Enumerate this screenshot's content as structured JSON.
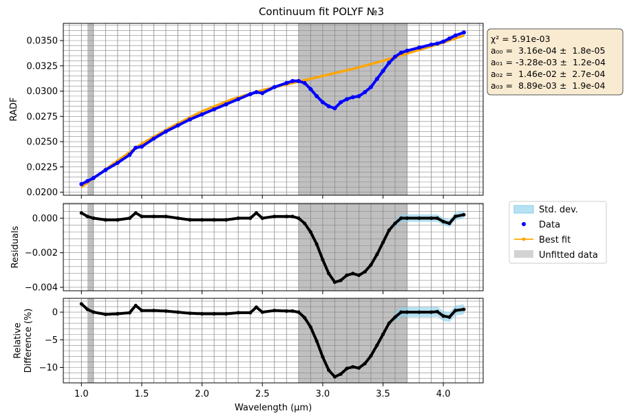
{
  "title": "Continuum fit POLYF №3",
  "colors": {
    "data": "#0000ff",
    "fit": "#ffa500",
    "std": "#87ceeb",
    "unfitted": "#c0c0c0",
    "residual_pts": "#000000",
    "stats_box": "#f5deb3"
  },
  "xlabel": "Wavelength (μm)",
  "fit_stats": [
    "χ² = 5.91e-03",
    "a₀₀ =  3.16e-04 ±  1.8e-05",
    "a₀₁ = -3.28e-03 ±  1.2e-04",
    "a₀₂ =  1.46e-02 ±  2.7e-04",
    "a₀₃ =  8.89e-03 ±  1.9e-04"
  ],
  "legend": [
    "Std. dev.",
    "Data",
    "Best fit",
    "Unfitted data"
  ],
  "chart_data": [
    {
      "type": "line",
      "panel": "spectrum",
      "ylabel": "RADF",
      "xlim": [
        0.85,
        4.33
      ],
      "ylim": [
        0.0197,
        0.0367
      ],
      "x_ticks": [
        1.0,
        1.5,
        2.0,
        2.5,
        3.0,
        3.5,
        4.0
      ],
      "y_ticks": [
        0.02,
        0.0225,
        0.025,
        0.0275,
        0.03,
        0.0325,
        0.035
      ],
      "y_tick_labels": [
        "0.0200",
        "0.0225",
        "0.0250",
        "0.0275",
        "0.0300",
        "0.0325",
        "0.0350"
      ],
      "grid": true,
      "unfitted_ranges": [
        [
          1.05,
          1.1
        ],
        [
          2.8,
          3.7
        ]
      ],
      "series": [
        {
          "name": "Data",
          "x": [
            1.0,
            1.05,
            1.1,
            1.2,
            1.3,
            1.4,
            1.45,
            1.5,
            1.6,
            1.7,
            1.8,
            1.9,
            2.0,
            2.1,
            2.2,
            2.3,
            2.4,
            2.45,
            2.5,
            2.6,
            2.7,
            2.75,
            2.8,
            2.85,
            2.9,
            2.95,
            3.0,
            3.05,
            3.1,
            3.15,
            3.2,
            3.25,
            3.3,
            3.35,
            3.4,
            3.45,
            3.5,
            3.55,
            3.6,
            3.65,
            3.7,
            3.8,
            3.9,
            3.95,
            4.0,
            4.05,
            4.1,
            4.17
          ],
          "values": [
            0.0208,
            0.0211,
            0.0214,
            0.0222,
            0.0229,
            0.0237,
            0.0244,
            0.0245,
            0.0253,
            0.026,
            0.0266,
            0.0272,
            0.0277,
            0.0282,
            0.0287,
            0.0292,
            0.0297,
            0.0299,
            0.0298,
            0.0304,
            0.0308,
            0.031,
            0.031,
            0.0308,
            0.0302,
            0.0295,
            0.0289,
            0.0285,
            0.0283,
            0.0289,
            0.0292,
            0.0294,
            0.0295,
            0.0299,
            0.0304,
            0.0312,
            0.032,
            0.0328,
            0.0334,
            0.0338,
            0.034,
            0.0343,
            0.0346,
            0.0347,
            0.0349,
            0.0352,
            0.0355,
            0.0358
          ]
        },
        {
          "name": "Best fit",
          "x": [
            1.0,
            1.25,
            1.5,
            1.75,
            2.0,
            2.25,
            2.5,
            2.75,
            3.0,
            3.25,
            3.5,
            3.75,
            4.0,
            4.17
          ],
          "values": [
            0.0205,
            0.0227,
            0.0248,
            0.0265,
            0.028,
            0.0292,
            0.0301,
            0.0308,
            0.0315,
            0.0322,
            0.033,
            0.0339,
            0.0348,
            0.0355
          ]
        }
      ]
    },
    {
      "type": "scatter",
      "panel": "residuals",
      "ylabel": "Residuals",
      "xlim": [
        0.85,
        4.33
      ],
      "ylim": [
        -0.0042,
        0.00085
      ],
      "y_ticks": [
        0.0,
        -0.002,
        -0.004
      ],
      "y_tick_labels": [
        "0.000",
        "−0.002",
        "−0.004"
      ],
      "grid": true,
      "series": [
        {
          "name": "Data",
          "x": [
            1.0,
            1.05,
            1.1,
            1.2,
            1.3,
            1.4,
            1.45,
            1.5,
            1.6,
            1.7,
            1.8,
            1.9,
            2.0,
            2.1,
            2.2,
            2.3,
            2.4,
            2.45,
            2.5,
            2.6,
            2.7,
            2.75,
            2.8,
            2.85,
            2.9,
            2.95,
            3.0,
            3.05,
            3.1,
            3.15,
            3.2,
            3.25,
            3.3,
            3.35,
            3.4,
            3.45,
            3.5,
            3.55,
            3.6,
            3.65,
            3.7,
            3.8,
            3.9,
            3.95,
            4.0,
            4.05,
            4.1,
            4.17
          ],
          "values": [
            0.0003,
            0.0001,
            0.0,
            -0.0001,
            -0.0001,
            0.0,
            0.0003,
            0.0001,
            0.0001,
            0.0001,
            0.0,
            -0.0001,
            -0.0001,
            -0.0001,
            -0.0001,
            0.0,
            0.0,
            0.0003,
            0.0,
            0.0001,
            0.0001,
            0.0001,
            0.0,
            -0.0003,
            -0.0008,
            -0.0015,
            -0.0024,
            -0.0032,
            -0.0037,
            -0.0036,
            -0.0033,
            -0.0032,
            -0.0033,
            -0.0031,
            -0.0027,
            -0.0021,
            -0.0014,
            -0.0007,
            -0.0003,
            0.0,
            0.0,
            0.0,
            0.0,
            0.0,
            -0.0002,
            -0.0003,
            0.0001,
            0.0002
          ]
        }
      ]
    },
    {
      "type": "scatter",
      "panel": "relative-difference",
      "ylabel": "Relative Difference (%)",
      "xlabel": "Wavelength (μm)",
      "xlim": [
        0.85,
        4.33
      ],
      "ylim": [
        -12.8,
        2.5
      ],
      "x_ticks": [
        1.0,
        1.5,
        2.0,
        2.5,
        3.0,
        3.5,
        4.0
      ],
      "x_tick_labels": [
        "1.0",
        "1.5",
        "2.0",
        "2.5",
        "3.0",
        "3.5",
        "4.0"
      ],
      "y_ticks": [
        0,
        -5,
        -10
      ],
      "y_tick_labels": [
        "0",
        "−5",
        "−10"
      ],
      "grid": true,
      "series": [
        {
          "name": "Data",
          "x": [
            1.0,
            1.05,
            1.1,
            1.2,
            1.3,
            1.4,
            1.45,
            1.5,
            1.6,
            1.7,
            1.8,
            1.9,
            2.0,
            2.1,
            2.2,
            2.3,
            2.4,
            2.45,
            2.5,
            2.6,
            2.7,
            2.75,
            2.8,
            2.85,
            2.9,
            2.95,
            3.0,
            3.05,
            3.1,
            3.15,
            3.2,
            3.25,
            3.3,
            3.35,
            3.4,
            3.45,
            3.5,
            3.55,
            3.6,
            3.65,
            3.7,
            3.8,
            3.9,
            3.95,
            4.0,
            4.05,
            4.1,
            4.17
          ],
          "values": [
            1.5,
            0.5,
            0.0,
            -0.4,
            -0.3,
            -0.1,
            1.2,
            0.3,
            0.3,
            0.2,
            0.0,
            -0.2,
            -0.3,
            -0.3,
            -0.3,
            -0.1,
            -0.1,
            0.9,
            0.0,
            0.3,
            0.2,
            0.2,
            0.0,
            -1.0,
            -2.7,
            -5.2,
            -8.1,
            -10.5,
            -11.7,
            -11.2,
            -10.2,
            -9.9,
            -10.1,
            -9.3,
            -7.9,
            -6.0,
            -4.0,
            -2.0,
            -0.9,
            0.0,
            0.0,
            0.0,
            0.0,
            0.1,
            -0.7,
            -0.9,
            0.3,
            0.5
          ]
        }
      ]
    }
  ]
}
